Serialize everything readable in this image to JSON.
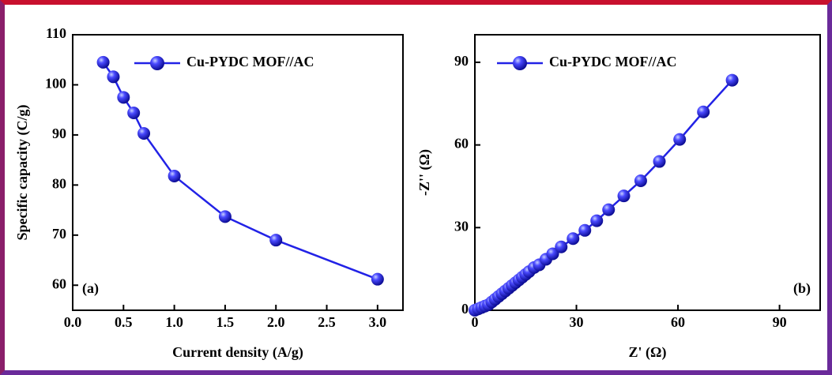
{
  "chart_data": [
    {
      "type": "line",
      "panel_label": "(a)",
      "x_label": "Current density (A/g)",
      "y_label": "Specific capacity (C/g)",
      "x": [
        0.3,
        0.4,
        0.5,
        0.6,
        0.7,
        1.0,
        1.5,
        2.0,
        3.0
      ],
      "series": [
        {
          "name": "Cu-PYDC MOF//AC",
          "color": "#2222e6",
          "values": [
            104.5,
            101.6,
            97.5,
            94.4,
            90.3,
            81.8,
            73.7,
            69.0,
            61.2
          ]
        }
      ],
      "xlim": [
        0,
        3.25
      ],
      "ylim": [
        55,
        110
      ],
      "xticks": [
        {
          "value": 0,
          "label": "0.0"
        },
        0.5,
        {
          "value": 1,
          "label": "1.0"
        },
        1.5,
        {
          "value": 2,
          "label": "2.0"
        },
        2.5,
        {
          "value": 3,
          "label": "3.0"
        }
      ],
      "yticks": [
        60,
        70,
        80,
        90,
        100,
        110
      ],
      "legend": "upper right",
      "legend_text_color": "#f05a22"
    },
    {
      "type": "line",
      "panel_label": "(b)",
      "x_label": "Z' (Ω)",
      "y_label": "-Z'' (Ω)",
      "x": [
        0,
        1,
        2,
        3,
        4,
        5,
        6,
        7,
        8,
        9,
        10,
        11,
        12,
        13,
        14,
        15,
        16,
        17.5,
        19,
        21,
        23,
        25.5,
        29,
        32.5,
        36,
        39.5,
        44,
        49,
        54.5,
        60.5,
        67.5,
        76
      ],
      "series": [
        {
          "name": "Cu-PYDC MOF//AC",
          "color": "#2222e6",
          "values": [
            0,
            0.5,
            1,
            1.5,
            2,
            3,
            4,
            5,
            6,
            7,
            8,
            9,
            10,
            11,
            12,
            13,
            14,
            15.5,
            16.5,
            18.5,
            20.5,
            23,
            26,
            29,
            32.5,
            36.5,
            41.5,
            47,
            54,
            62,
            72,
            83.5
          ]
        }
      ],
      "xlim": [
        0,
        102
      ],
      "ylim": [
        0,
        100
      ],
      "xticks": [
        0,
        30,
        60,
        90
      ],
      "yticks": [
        0,
        30,
        60,
        90
      ],
      "legend": "upper left",
      "legend_text_color": "#f05a22"
    }
  ]
}
